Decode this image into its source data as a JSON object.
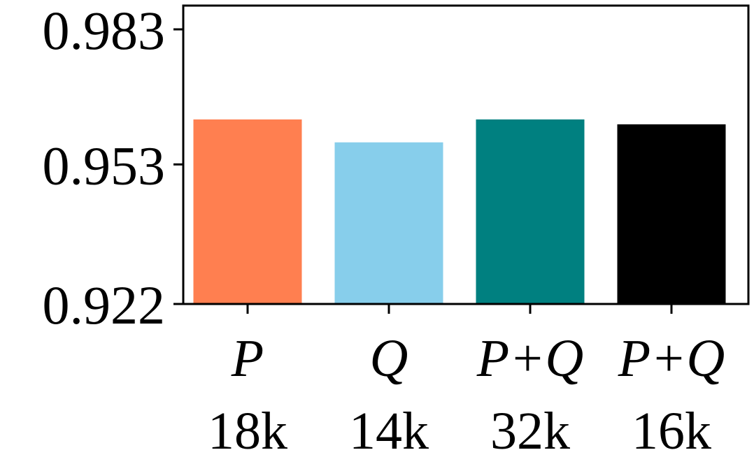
{
  "chart_data": {
    "type": "bar",
    "title": "",
    "xlabel": "",
    "ylabel": "",
    "ylim": [
      0.922,
      0.983
    ],
    "yticks": [
      0.922,
      0.953,
      0.983
    ],
    "ytick_labels": [
      "0.922",
      "0.953",
      "0.983"
    ],
    "categories": [
      {
        "name": "P",
        "size": "18k"
      },
      {
        "name": "Q",
        "size": "14k"
      },
      {
        "name": "P+Q",
        "size": "32k"
      },
      {
        "name": "P+Q",
        "size": "16k"
      }
    ],
    "values": [
      0.963,
      0.9579,
      0.963,
      0.9619
    ],
    "colors": [
      "#ff7f50",
      "#87ceeb",
      "#008080",
      "#000000"
    ],
    "grid": false,
    "legend": "none"
  }
}
